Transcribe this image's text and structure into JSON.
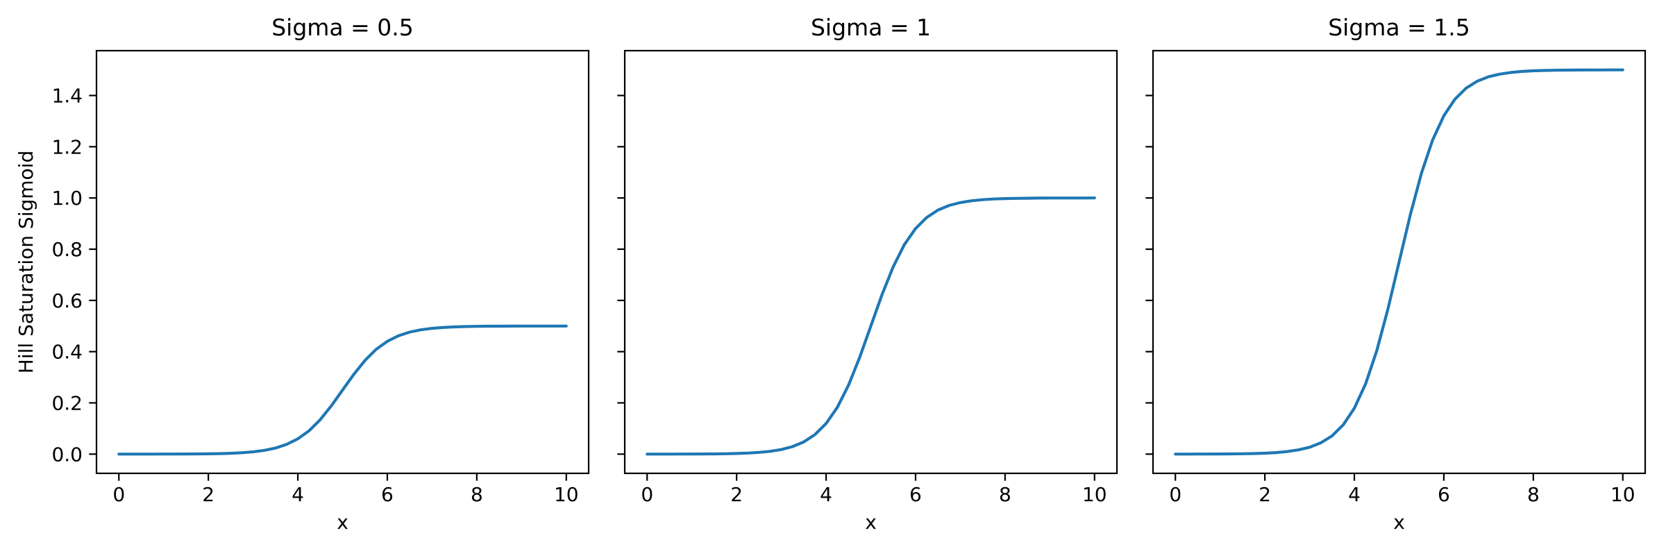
{
  "figure": {
    "background": "#ffffff"
  },
  "chart_data": {
    "type": "line",
    "subplots": [
      {
        "title": "Sigma = 0.5",
        "series_index": 0
      },
      {
        "title": "Sigma = 1",
        "series_index": 1
      },
      {
        "title": "Sigma = 1.5",
        "series_index": 2
      }
    ],
    "x": [
      0,
      0.25,
      0.5,
      0.75,
      1,
      1.25,
      1.5,
      1.75,
      2,
      2.25,
      2.5,
      2.75,
      3,
      3.25,
      3.5,
      3.75,
      4,
      4.25,
      4.5,
      4.75,
      5,
      5.25,
      5.5,
      5.75,
      6,
      6.25,
      6.5,
      6.75,
      7,
      7.25,
      7.5,
      7.75,
      8,
      8.25,
      8.5,
      8.75,
      9,
      9.25,
      9.5,
      9.75,
      10
    ],
    "series": [
      {
        "name": "Sigma = 0.5",
        "sigma": 0.5,
        "values": [
          0.0,
          0.0,
          0.0001,
          0.0001,
          0.0002,
          0.0003,
          0.0005,
          0.0008,
          0.0012,
          0.002,
          0.0033,
          0.0055,
          0.009,
          0.0147,
          0.0237,
          0.0379,
          0.0596,
          0.0912,
          0.1345,
          0.1888,
          0.25,
          0.3112,
          0.3655,
          0.4088,
          0.4404,
          0.4621,
          0.4763,
          0.4853,
          0.491,
          0.4945,
          0.4967,
          0.498,
          0.4988,
          0.4993,
          0.4995,
          0.4997,
          0.4998,
          0.4999,
          0.4999,
          0.5,
          0.5
        ]
      },
      {
        "name": "Sigma = 1",
        "sigma": 1,
        "values": [
          0.0,
          0.0001,
          0.0001,
          0.0002,
          0.0003,
          0.0006,
          0.0009,
          0.0015,
          0.0025,
          0.0041,
          0.0067,
          0.011,
          0.018,
          0.0293,
          0.0474,
          0.0759,
          0.1192,
          0.1824,
          0.2689,
          0.3775,
          0.5,
          0.6225,
          0.7311,
          0.8176,
          0.8808,
          0.9241,
          0.9526,
          0.9707,
          0.982,
          0.989,
          0.9933,
          0.9959,
          0.9975,
          0.9985,
          0.9991,
          0.9994,
          0.9997,
          0.9998,
          0.9999,
          0.9999,
          1.0
        ]
      },
      {
        "name": "Sigma = 1.5",
        "sigma": 1.5,
        "values": [
          0.0001,
          0.0001,
          0.0002,
          0.0003,
          0.0005,
          0.0008,
          0.0014,
          0.0023,
          0.0037,
          0.0061,
          0.01,
          0.0165,
          0.027,
          0.044,
          0.0711,
          0.1138,
          0.1788,
          0.2736,
          0.4034,
          0.5663,
          0.75,
          0.9337,
          1.0966,
          1.2264,
          1.3212,
          1.3862,
          1.4289,
          1.456,
          1.473,
          1.4835,
          1.49,
          1.4939,
          1.4963,
          1.4978,
          1.4986,
          1.4992,
          1.4995,
          1.4997,
          1.4998,
          1.4999,
          1.4999
        ]
      }
    ],
    "xlabel": "x",
    "ylabel": "Hill Saturation Sigmoid",
    "x_ticks": [
      0,
      2,
      4,
      6,
      8,
      10
    ],
    "x_tick_labels": [
      "0",
      "2",
      "4",
      "6",
      "8",
      "10"
    ],
    "y_ticks": [
      0.0,
      0.2,
      0.4,
      0.6,
      0.8,
      1.0,
      1.2,
      1.4
    ],
    "y_tick_labels": [
      "0.0",
      "0.2",
      "0.4",
      "0.6",
      "0.8",
      "1.0",
      "1.2",
      "1.4"
    ],
    "xlim": [
      -0.5,
      10.5
    ],
    "ylim": [
      -0.075,
      1.575
    ],
    "grid": false,
    "legend": "none",
    "line_color": "#1f77b4",
    "axis_color": "#000000"
  }
}
